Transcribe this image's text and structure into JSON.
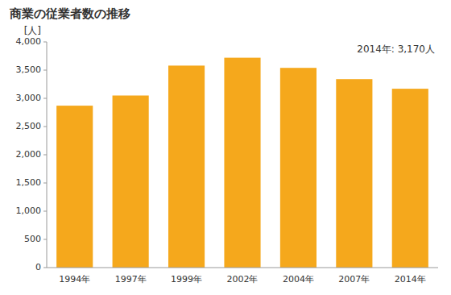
{
  "chart_data": {
    "type": "bar",
    "title": "商業の従業者数の推移",
    "ylabel": "[人]",
    "annotation": "2014年: 3,170人",
    "categories": [
      "1994年",
      "1997年",
      "1999年",
      "2002年",
      "2004年",
      "2007年",
      "2014年"
    ],
    "values": [
      2870,
      3050,
      3580,
      3720,
      3540,
      3340,
      3170
    ],
    "color": "#F5A81C",
    "ylim": [
      0,
      4000
    ],
    "yticks": [
      0,
      500,
      {
        "value": 1000,
        "label": "1,000"
      },
      {
        "value": 1500,
        "label": "1,500"
      },
      {
        "value": 2000,
        "label": "2,000"
      },
      {
        "value": 2500,
        "label": "2,500"
      },
      {
        "value": 3000,
        "label": "3,000"
      },
      {
        "value": 3500,
        "label": "3,500"
      },
      {
        "value": 4000,
        "label": "4,000"
      }
    ],
    "grid": false
  }
}
